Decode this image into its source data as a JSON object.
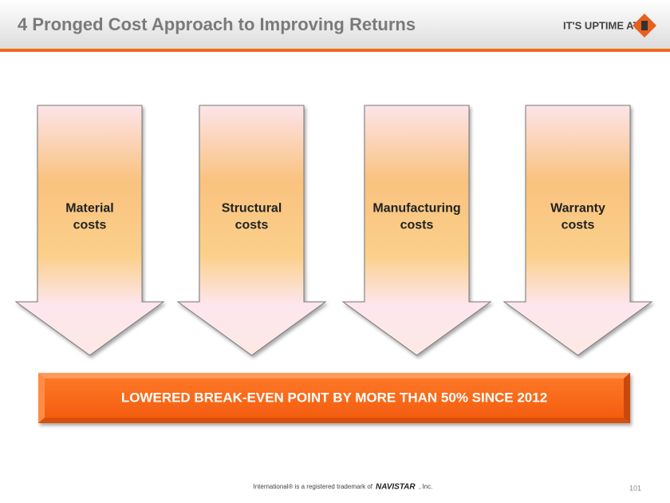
{
  "header": {
    "title": "4 Pronged Cost Approach to Improving Returns",
    "logo": "IT'S UPTIME AT"
  },
  "arrows": [
    {
      "label": [
        "Material",
        "costs"
      ]
    },
    {
      "label": [
        "Structural",
        "costs"
      ]
    },
    {
      "label": [
        "Manufacturing",
        "costs"
      ]
    },
    {
      "label": [
        "Warranty",
        "costs"
      ]
    }
  ],
  "banner": "LOWERED BREAK-EVEN POINT BY MORE THAN 50% SINCE 2012",
  "footer": {
    "prefix": "International® is a registered trademark of",
    "brand": "NAVISTAR",
    "suffix": ", Inc.",
    "page": "101"
  }
}
